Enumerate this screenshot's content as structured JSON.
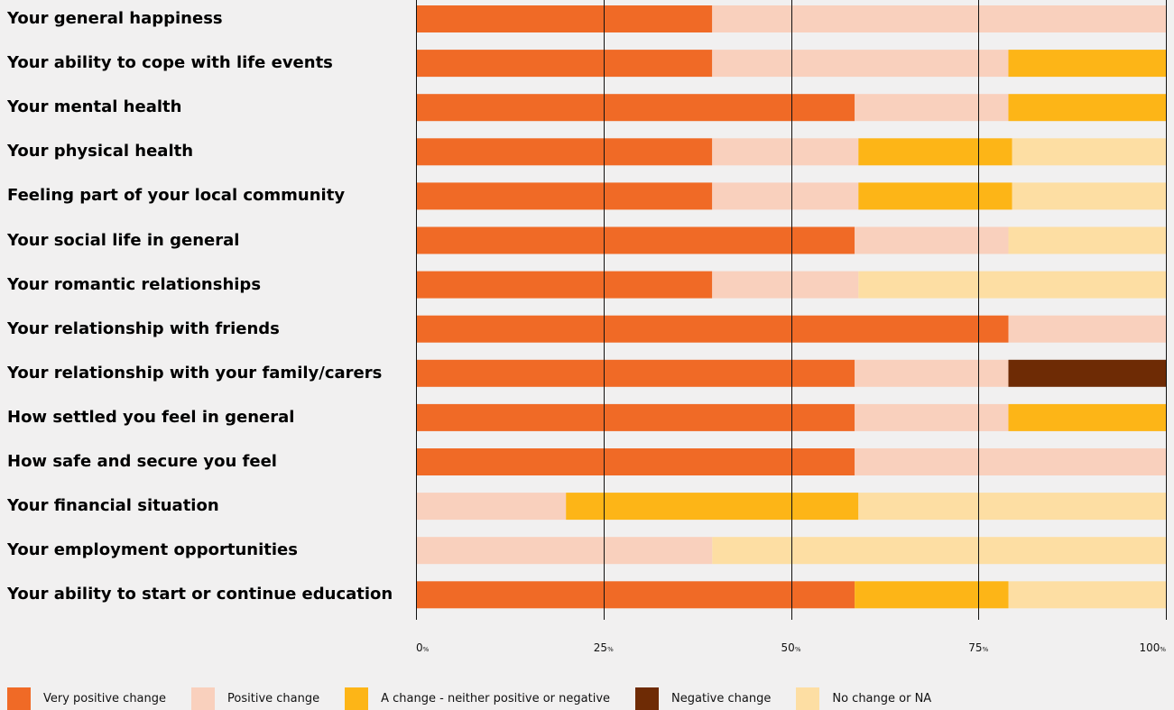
{
  "chart_data": {
    "type": "bar",
    "orientation": "horizontal",
    "stacked": true,
    "xlim": [
      0,
      100
    ],
    "grid": true,
    "legend_position": "bottom",
    "ticks": [
      {
        "value": 0,
        "num": "0",
        "unit": "%"
      },
      {
        "value": 25,
        "num": "25",
        "unit": "%"
      },
      {
        "value": 50,
        "num": "50",
        "unit": "%"
      },
      {
        "value": 75,
        "num": "75",
        "unit": "%"
      },
      {
        "value": 100,
        "num": "100",
        "unit": "%"
      }
    ],
    "categories": [
      "Your general happiness",
      "Your ability to cope with life events",
      "Your mental health",
      "Your physical health",
      "Feeling part of your local community",
      "Your social life in general",
      "Your romantic relationships",
      "Your relationship with friends",
      "Your relationship with your family/carers",
      "How settled you feel in general",
      "How safe and secure you feel",
      "Your financial situation",
      "Your employment opportunities",
      "Your ability to start or continue education"
    ],
    "series": [
      {
        "name": "Very positive change",
        "color": "#f06a26",
        "values": [
          39.5,
          39.5,
          58.5,
          39.5,
          39.5,
          58.5,
          39.5,
          79,
          58.5,
          58.5,
          58.5,
          0,
          0,
          58.5
        ]
      },
      {
        "name": "Positive change",
        "color": "#f9d0bd",
        "values": [
          60.5,
          39.5,
          20.5,
          19.5,
          19.5,
          20.5,
          19.5,
          21,
          20.5,
          20.5,
          41.5,
          20,
          39.5,
          0
        ]
      },
      {
        "name": "A change - neither positive or negative",
        "color": "#fdb517",
        "values": [
          0,
          21,
          21,
          20.5,
          20.5,
          0,
          0,
          0,
          0,
          21,
          0,
          39,
          0,
          20.5
        ]
      },
      {
        "name": "Negative change",
        "color": "#6e2b05",
        "values": [
          0,
          0,
          0,
          0,
          0,
          0,
          0,
          0,
          21,
          0,
          0,
          0,
          0,
          0
        ]
      },
      {
        "name": "No change or NA",
        "color": "#fddea3",
        "values": [
          0,
          0,
          0,
          20.5,
          20.5,
          21,
          41,
          0,
          0,
          0,
          0,
          41,
          60.5,
          21
        ]
      }
    ]
  }
}
